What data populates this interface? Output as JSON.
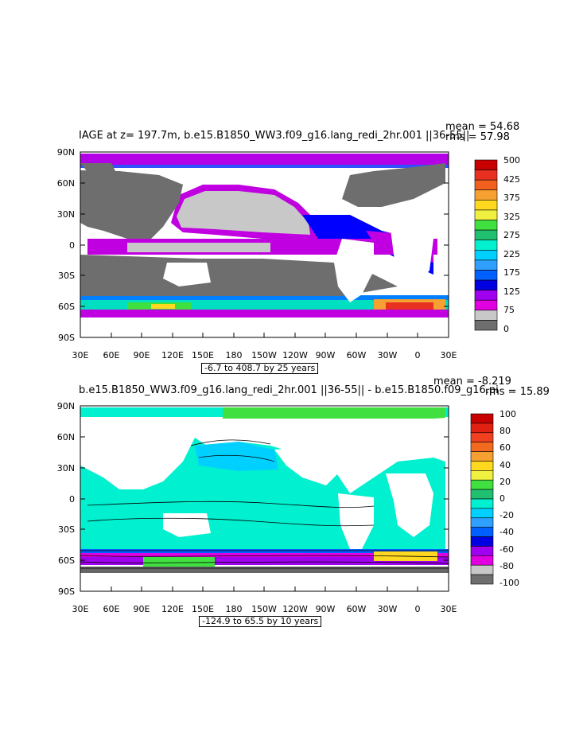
{
  "panel1": {
    "title": "IAGE at z= 197.7m, b.e15.B1850_WW3.f09_g16.lang_redi_2hr.001 ||36-55||",
    "mean": "mean = 54.68",
    "rms": "rms = 57.98",
    "range_label": "-6.7 to 408.7 by 25 years",
    "colorbar_labels": [
      "500",
      "425",
      "375",
      "325",
      "275",
      "225",
      "175",
      "125",
      "75",
      "0"
    ],
    "colorbar_colors": [
      "#c80000",
      "#e83020",
      "#f26020",
      "#f5a030",
      "#ffd820",
      "#f0f040",
      "#40e040",
      "#20c070",
      "#00f0d0",
      "#00d0ff",
      "#30a0ff",
      "#0060ff",
      "#0000e0",
      "#a000f0",
      "#e000e0",
      "#c8c8c8",
      "#6e6e6e"
    ]
  },
  "panel2": {
    "title": "b.e15.B1850_WW3.f09_g16.lang_redi_2hr.001 ||36-55|| - b.e15.B1850.f09_g16.pi",
    "mean": "mean = -8.219",
    "rms": "rms = 15.89",
    "range_label": "-124.9 to 65.5 by 10 years",
    "colorbar_labels": [
      "100",
      "80",
      "60",
      "40",
      "20",
      "0",
      "-20",
      "-40",
      "-60",
      "-80",
      "-100"
    ],
    "colorbar_colors": [
      "#c80000",
      "#e02010",
      "#f04020",
      "#f26a20",
      "#f5a030",
      "#ffd820",
      "#f0f040",
      "#40e040",
      "#20c070",
      "#00f0d0",
      "#00d0ff",
      "#30a0ff",
      "#0060ff",
      "#0000e0",
      "#a000f0",
      "#e000e0",
      "#c8c8c8",
      "#6e6e6e"
    ]
  },
  "axes": {
    "lat_labels": [
      "90N",
      "60N",
      "30N",
      "0",
      "30S",
      "60S",
      "90S"
    ],
    "lon_labels": [
      "30E",
      "60E",
      "90E",
      "120E",
      "150E",
      "180",
      "150W",
      "120W",
      "90W",
      "60W",
      "30W",
      "0",
      "30E"
    ]
  },
  "colors": {
    "land": "#6e6e6e",
    "ocean_low": "#ffffff",
    "diff_ocean": "#00f0d0",
    "diff_arctic": "#40e040"
  }
}
